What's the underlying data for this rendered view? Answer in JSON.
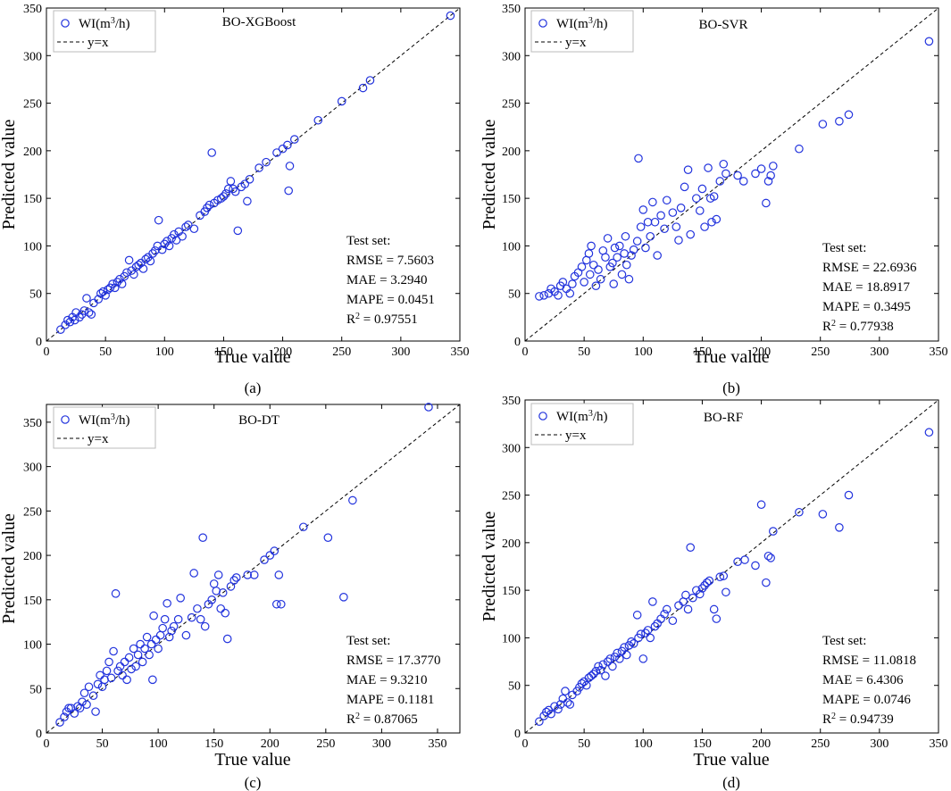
{
  "chart_data": [
    {
      "type": "scatter",
      "caption": "(a)",
      "title": "BO-XGBoost",
      "xlabel": "True value",
      "ylabel": "Predicted value",
      "xlim": [
        0,
        350
      ],
      "ylim": [
        0,
        350
      ],
      "xticks": [
        0,
        50,
        100,
        150,
        200,
        250,
        300,
        350
      ],
      "yticks": [
        0,
        50,
        100,
        150,
        200,
        250,
        300,
        350
      ],
      "legend": [
        {
          "label": "WI(m³/h)",
          "type": "marker"
        },
        {
          "label": "y=x",
          "type": "dashed-line"
        }
      ],
      "metrics_title": "Test set:",
      "metrics": [
        "RMSE = 7.5603",
        "MAE = 3.2940",
        "MAPE = 0.0451",
        "R² = 0.97551"
      ],
      "points": [
        [
          12,
          12
        ],
        [
          16,
          17
        ],
        [
          18,
          22
        ],
        [
          20,
          20
        ],
        [
          22,
          25
        ],
        [
          24,
          22
        ],
        [
          25,
          30
        ],
        [
          28,
          25
        ],
        [
          30,
          28
        ],
        [
          32,
          32
        ],
        [
          34,
          45
        ],
        [
          36,
          30
        ],
        [
          38,
          28
        ],
        [
          40,
          40
        ],
        [
          44,
          44
        ],
        [
          46,
          50
        ],
        [
          48,
          52
        ],
        [
          50,
          48
        ],
        [
          52,
          54
        ],
        [
          54,
          56
        ],
        [
          56,
          60
        ],
        [
          58,
          56
        ],
        [
          60,
          62
        ],
        [
          62,
          65
        ],
        [
          64,
          60
        ],
        [
          66,
          68
        ],
        [
          68,
          72
        ],
        [
          70,
          85
        ],
        [
          72,
          74
        ],
        [
          74,
          70
        ],
        [
          76,
          78
        ],
        [
          78,
          80
        ],
        [
          80,
          82
        ],
        [
          82,
          76
        ],
        [
          84,
          86
        ],
        [
          86,
          88
        ],
        [
          88,
          84
        ],
        [
          90,
          92
        ],
        [
          92,
          95
        ],
        [
          94,
          100
        ],
        [
          95,
          127
        ],
        [
          98,
          96
        ],
        [
          100,
          102
        ],
        [
          102,
          105
        ],
        [
          104,
          100
        ],
        [
          106,
          108
        ],
        [
          108,
          112
        ],
        [
          110,
          106
        ],
        [
          112,
          115
        ],
        [
          115,
          110
        ],
        [
          118,
          120
        ],
        [
          120,
          122
        ],
        [
          125,
          118
        ],
        [
          130,
          132
        ],
        [
          134,
          136
        ],
        [
          136,
          140
        ],
        [
          138,
          143
        ],
        [
          140,
          198
        ],
        [
          142,
          145
        ],
        [
          145,
          148
        ],
        [
          148,
          150
        ],
        [
          150,
          152
        ],
        [
          152,
          155
        ],
        [
          154,
          160
        ],
        [
          156,
          168
        ],
        [
          158,
          160
        ],
        [
          160,
          157
        ],
        [
          162,
          116
        ],
        [
          165,
          162
        ],
        [
          168,
          165
        ],
        [
          170,
          147
        ],
        [
          172,
          170
        ],
        [
          180,
          182
        ],
        [
          186,
          188
        ],
        [
          195,
          198
        ],
        [
          200,
          202
        ],
        [
          204,
          206
        ],
        [
          205,
          158
        ],
        [
          206,
          184
        ],
        [
          210,
          212
        ],
        [
          230,
          232
        ],
        [
          250,
          252
        ],
        [
          268,
          266
        ],
        [
          274,
          274
        ],
        [
          342,
          342
        ]
      ]
    },
    {
      "type": "scatter",
      "caption": "(b)",
      "title": "BO-SVR",
      "xlabel": "True value",
      "ylabel": "Predicted value",
      "xlim": [
        0,
        350
      ],
      "ylim": [
        0,
        350
      ],
      "xticks": [
        0,
        50,
        100,
        150,
        200,
        250,
        300,
        350
      ],
      "yticks": [
        0,
        50,
        100,
        150,
        200,
        250,
        300,
        350
      ],
      "legend": [
        {
          "label": "WI(m³/h)",
          "type": "marker"
        },
        {
          "label": "y=x",
          "type": "dashed-line"
        }
      ],
      "metrics_title": "Test set:",
      "metrics": [
        "RMSE = 22.6936",
        "MAE = 18.8917",
        "MAPE = 0.3495",
        "R² = 0.77938"
      ],
      "points": [
        [
          12,
          47
        ],
        [
          16,
          48
        ],
        [
          20,
          50
        ],
        [
          22,
          55
        ],
        [
          25,
          52
        ],
        [
          28,
          48
        ],
        [
          30,
          58
        ],
        [
          32,
          62
        ],
        [
          35,
          55
        ],
        [
          38,
          50
        ],
        [
          40,
          60
        ],
        [
          42,
          68
        ],
        [
          45,
          72
        ],
        [
          48,
          78
        ],
        [
          50,
          62
        ],
        [
          52,
          85
        ],
        [
          54,
          92
        ],
        [
          55,
          70
        ],
        [
          56,
          100
        ],
        [
          58,
          80
        ],
        [
          60,
          58
        ],
        [
          62,
          75
        ],
        [
          64,
          65
        ],
        [
          66,
          95
        ],
        [
          68,
          88
        ],
        [
          70,
          108
        ],
        [
          72,
          78
        ],
        [
          74,
          82
        ],
        [
          75,
          60
        ],
        [
          76,
          98
        ],
        [
          78,
          88
        ],
        [
          80,
          100
        ],
        [
          82,
          70
        ],
        [
          84,
          92
        ],
        [
          85,
          110
        ],
        [
          86,
          80
        ],
        [
          88,
          65
        ],
        [
          90,
          90
        ],
        [
          92,
          96
        ],
        [
          95,
          105
        ],
        [
          96,
          192
        ],
        [
          98,
          120
        ],
        [
          100,
          138
        ],
        [
          102,
          98
        ],
        [
          104,
          125
        ],
        [
          106,
          110
        ],
        [
          108,
          146
        ],
        [
          110,
          125
        ],
        [
          112,
          90
        ],
        [
          115,
          132
        ],
        [
          118,
          118
        ],
        [
          120,
          148
        ],
        [
          125,
          135
        ],
        [
          128,
          120
        ],
        [
          130,
          106
        ],
        [
          132,
          140
        ],
        [
          135,
          162
        ],
        [
          138,
          180
        ],
        [
          140,
          112
        ],
        [
          145,
          150
        ],
        [
          148,
          137
        ],
        [
          150,
          160
        ],
        [
          152,
          120
        ],
        [
          155,
          182
        ],
        [
          157,
          150
        ],
        [
          158,
          125
        ],
        [
          160,
          152
        ],
        [
          162,
          128
        ],
        [
          165,
          168
        ],
        [
          168,
          186
        ],
        [
          170,
          176
        ],
        [
          180,
          174
        ],
        [
          185,
          168
        ],
        [
          195,
          176
        ],
        [
          200,
          181
        ],
        [
          204,
          145
        ],
        [
          206,
          168
        ],
        [
          208,
          174
        ],
        [
          210,
          184
        ],
        [
          232,
          202
        ],
        [
          252,
          228
        ],
        [
          266,
          231
        ],
        [
          274,
          238
        ],
        [
          342,
          315
        ]
      ]
    },
    {
      "type": "scatter",
      "caption": "(c)",
      "title": "BO-DT",
      "xlabel": "True value",
      "ylabel": "Predicted value",
      "xlim": [
        0,
        370
      ],
      "ylim": [
        0,
        370
      ],
      "xticks": [
        0,
        50,
        100,
        150,
        200,
        250,
        300,
        350
      ],
      "yticks": [
        0,
        50,
        100,
        150,
        200,
        250,
        300,
        350
      ],
      "legend": [
        {
          "label": "WI(m³/h)",
          "type": "marker"
        },
        {
          "label": "y=x",
          "type": "dashed-line"
        }
      ],
      "metrics_title": "Test set:",
      "metrics": [
        "RMSE = 17.3770",
        "MAE = 9.3210",
        "MAPE = 0.1181",
        "R² = 0.87065"
      ],
      "points": [
        [
          12,
          12
        ],
        [
          16,
          18
        ],
        [
          18,
          24
        ],
        [
          20,
          28
        ],
        [
          22,
          28
        ],
        [
          25,
          22
        ],
        [
          28,
          30
        ],
        [
          30,
          28
        ],
        [
          32,
          35
        ],
        [
          34,
          45
        ],
        [
          36,
          32
        ],
        [
          38,
          52
        ],
        [
          42,
          42
        ],
        [
          44,
          24
        ],
        [
          46,
          55
        ],
        [
          48,
          65
        ],
        [
          50,
          52
        ],
        [
          52,
          60
        ],
        [
          54,
          70
        ],
        [
          56,
          80
        ],
        [
          58,
          62
        ],
        [
          60,
          92
        ],
        [
          62,
          157
        ],
        [
          64,
          70
        ],
        [
          66,
          75
        ],
        [
          68,
          65
        ],
        [
          70,
          80
        ],
        [
          72,
          60
        ],
        [
          74,
          85
        ],
        [
          76,
          72
        ],
        [
          78,
          95
        ],
        [
          80,
          75
        ],
        [
          82,
          88
        ],
        [
          84,
          100
        ],
        [
          86,
          80
        ],
        [
          88,
          95
        ],
        [
          90,
          108
        ],
        [
          92,
          88
        ],
        [
          94,
          100
        ],
        [
          95,
          60
        ],
        [
          96,
          132
        ],
        [
          98,
          105
        ],
        [
          100,
          95
        ],
        [
          102,
          110
        ],
        [
          104,
          118
        ],
        [
          106,
          128
        ],
        [
          108,
          146
        ],
        [
          110,
          108
        ],
        [
          112,
          115
        ],
        [
          114,
          120
        ],
        [
          118,
          128
        ],
        [
          120,
          152
        ],
        [
          125,
          110
        ],
        [
          130,
          130
        ],
        [
          132,
          180
        ],
        [
          135,
          140
        ],
        [
          138,
          128
        ],
        [
          140,
          220
        ],
        [
          142,
          120
        ],
        [
          145,
          145
        ],
        [
          148,
          150
        ],
        [
          150,
          168
        ],
        [
          152,
          160
        ],
        [
          154,
          178
        ],
        [
          156,
          140
        ],
        [
          158,
          158
        ],
        [
          160,
          135
        ],
        [
          162,
          106
        ],
        [
          165,
          165
        ],
        [
          168,
          172
        ],
        [
          170,
          175
        ],
        [
          180,
          178
        ],
        [
          186,
          178
        ],
        [
          195,
          195
        ],
        [
          200,
          200
        ],
        [
          204,
          205
        ],
        [
          206,
          145
        ],
        [
          208,
          178
        ],
        [
          210,
          145
        ],
        [
          230,
          232
        ],
        [
          252,
          220
        ],
        [
          266,
          153
        ],
        [
          274,
          262
        ],
        [
          342,
          367
        ]
      ]
    },
    {
      "type": "scatter",
      "caption": "(d)",
      "title": "BO-RF",
      "xlabel": "True value",
      "ylabel": "Predicted value",
      "xlim": [
        0,
        350
      ],
      "ylim": [
        0,
        350
      ],
      "xticks": [
        0,
        50,
        100,
        150,
        200,
        250,
        300,
        350
      ],
      "yticks": [
        0,
        50,
        100,
        150,
        200,
        250,
        300,
        350
      ],
      "legend": [
        {
          "label": "WI(m³/h)",
          "type": "marker"
        },
        {
          "label": "y=x",
          "type": "dashed-line"
        }
      ],
      "metrics_title": "Test set:",
      "metrics": [
        "RMSE = 11.0818",
        "MAE = 6.4306",
        "MAPE = 0.0746",
        "R² = 0.94739"
      ],
      "points": [
        [
          12,
          12
        ],
        [
          16,
          18
        ],
        [
          18,
          22
        ],
        [
          20,
          24
        ],
        [
          22,
          20
        ],
        [
          25,
          28
        ],
        [
          28,
          25
        ],
        [
          30,
          30
        ],
        [
          32,
          36
        ],
        [
          34,
          44
        ],
        [
          36,
          32
        ],
        [
          38,
          30
        ],
        [
          40,
          40
        ],
        [
          44,
          44
        ],
        [
          46,
          48
        ],
        [
          48,
          52
        ],
        [
          50,
          54
        ],
        [
          52,
          50
        ],
        [
          54,
          58
        ],
        [
          56,
          60
        ],
        [
          58,
          62
        ],
        [
          60,
          65
        ],
        [
          62,
          70
        ],
        [
          64,
          66
        ],
        [
          66,
          72
        ],
        [
          68,
          60
        ],
        [
          70,
          75
        ],
        [
          72,
          78
        ],
        [
          74,
          70
        ],
        [
          76,
          80
        ],
        [
          78,
          84
        ],
        [
          80,
          78
        ],
        [
          82,
          86
        ],
        [
          84,
          90
        ],
        [
          86,
          82
        ],
        [
          88,
          92
        ],
        [
          90,
          96
        ],
        [
          92,
          94
        ],
        [
          95,
          124
        ],
        [
          96,
          100
        ],
        [
          98,
          104
        ],
        [
          100,
          78
        ],
        [
          102,
          105
        ],
        [
          104,
          108
        ],
        [
          106,
          100
        ],
        [
          108,
          138
        ],
        [
          110,
          112
        ],
        [
          112,
          115
        ],
        [
          115,
          120
        ],
        [
          118,
          125
        ],
        [
          120,
          130
        ],
        [
          125,
          118
        ],
        [
          130,
          134
        ],
        [
          134,
          138
        ],
        [
          136,
          145
        ],
        [
          138,
          130
        ],
        [
          140,
          195
        ],
        [
          142,
          142
        ],
        [
          145,
          150
        ],
        [
          148,
          146
        ],
        [
          150,
          152
        ],
        [
          152,
          155
        ],
        [
          154,
          158
        ],
        [
          156,
          160
        ],
        [
          160,
          130
        ],
        [
          162,
          120
        ],
        [
          165,
          164
        ],
        [
          168,
          165
        ],
        [
          170,
          148
        ],
        [
          180,
          180
        ],
        [
          186,
          182
        ],
        [
          195,
          176
        ],
        [
          200,
          240
        ],
        [
          204,
          158
        ],
        [
          206,
          186
        ],
        [
          208,
          184
        ],
        [
          210,
          212
        ],
        [
          232,
          232
        ],
        [
          252,
          230
        ],
        [
          266,
          216
        ],
        [
          274,
          250
        ],
        [
          342,
          316
        ]
      ]
    }
  ]
}
